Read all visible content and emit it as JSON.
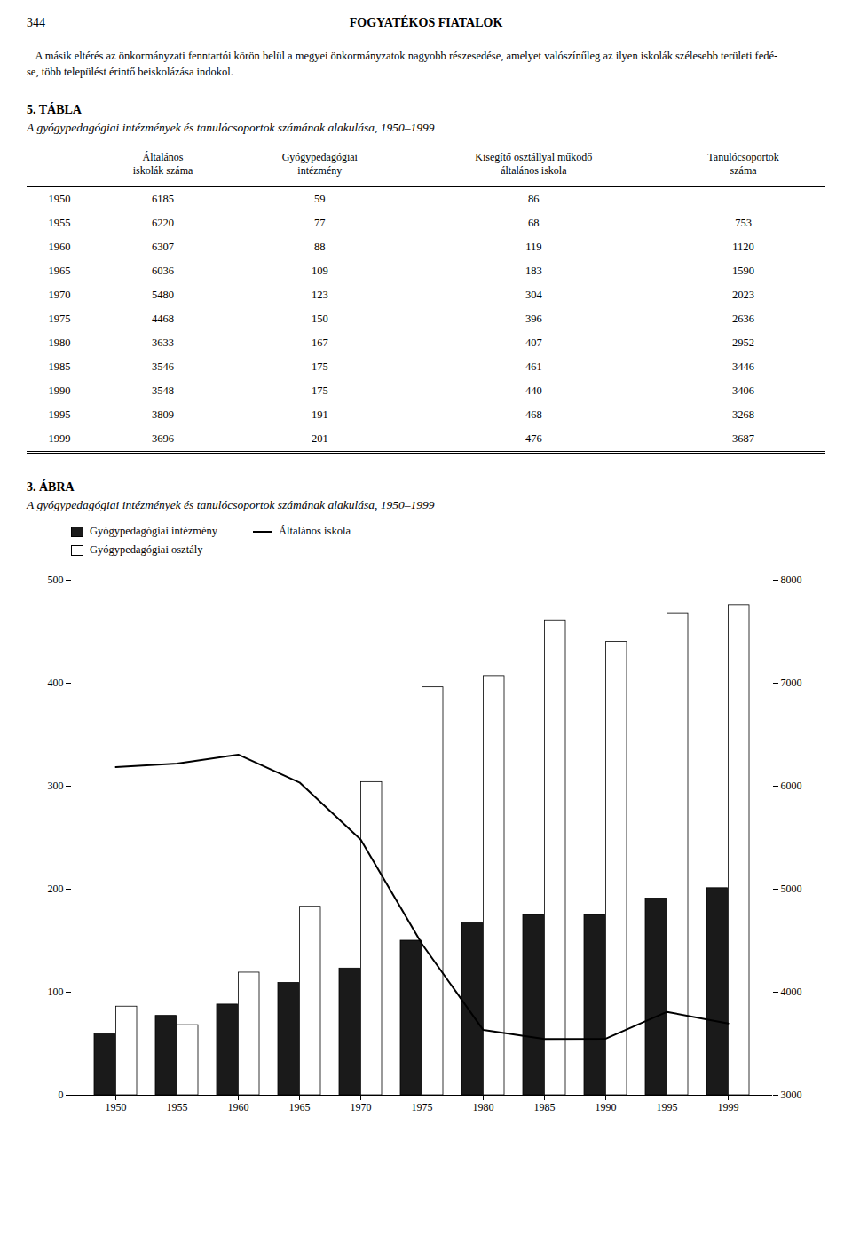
{
  "page": {
    "number": "344",
    "title": "FOGYATÉKOS FIATALOK",
    "body_text": [
      "   A másik eltérés az önkormányzati fenntartói körön belül a megyei önkormányzatok nagyobb részesedése, amelyet valószínűleg az ilyen iskolák szélesebb területi fedé-",
      "se, több települést érintő beiskolázása indokol."
    ]
  },
  "chart_data": [
    {
      "type": "table",
      "title": "5. TÁBLA",
      "subtitle": "A gyógypedagógiai intézmények és tanulócsoportok számának alakulása, 1950–1999",
      "columns": [
        null,
        "Általános\niskolák száma",
        "Gyógypedagógiai\nintézmény",
        "Kisegítő osztállyal működő\náltalános iskola",
        "Tanulócsoportok\nszáma"
      ],
      "rows": [
        [
          1950,
          6185,
          59,
          86,
          null
        ],
        [
          1955,
          6220,
          77,
          68,
          753
        ],
        [
          1960,
          6307,
          88,
          119,
          1120
        ],
        [
          1965,
          6036,
          109,
          183,
          1590
        ],
        [
          1970,
          5480,
          123,
          304,
          2023
        ],
        [
          1975,
          4468,
          150,
          396,
          2636
        ],
        [
          1980,
          3633,
          167,
          407,
          2952
        ],
        [
          1985,
          3546,
          175,
          461,
          3446
        ],
        [
          1990,
          3548,
          175,
          440,
          3406
        ],
        [
          1995,
          3809,
          191,
          468,
          3268
        ],
        [
          1999,
          3696,
          201,
          476,
          3687
        ]
      ]
    },
    {
      "type": "bar",
      "title": "3. ÁBRA",
      "subtitle": "A gyógypedagógiai intézmények és tanulócsoportok számának alakulása, 1950–1999",
      "categories": [
        "1950",
        "1955",
        "1960",
        "1965",
        "1970",
        "1975",
        "1980",
        "1985",
        "1990",
        "1995",
        "1999"
      ],
      "series": [
        {
          "name": "Gyógypedagógiai intézmény",
          "color": "#1a1a1a",
          "values": [
            59,
            77,
            88,
            109,
            123,
            150,
            167,
            175,
            175,
            191,
            201
          ]
        },
        {
          "name": "Gyógypedagógiai osztály",
          "color": "#ffffff",
          "values": [
            86,
            68,
            119,
            183,
            304,
            396,
            407,
            461,
            440,
            468,
            476
          ]
        },
        {
          "name": "Általános iskola",
          "type": "line",
          "axis": "y2",
          "color": "#000000",
          "values": [
            6185,
            6220,
            6307,
            6036,
            5480,
            4468,
            3633,
            3546,
            3548,
            3809,
            3696
          ]
        }
      ],
      "ylim": [
        0,
        500
      ],
      "yticks": [
        0,
        100,
        200,
        300,
        400,
        500
      ],
      "y2lim": [
        3000,
        8000
      ],
      "y2ticks": [
        3000,
        4000,
        5000,
        6000,
        7000,
        8000
      ],
      "legend": "upper left",
      "grid": false
    }
  ]
}
